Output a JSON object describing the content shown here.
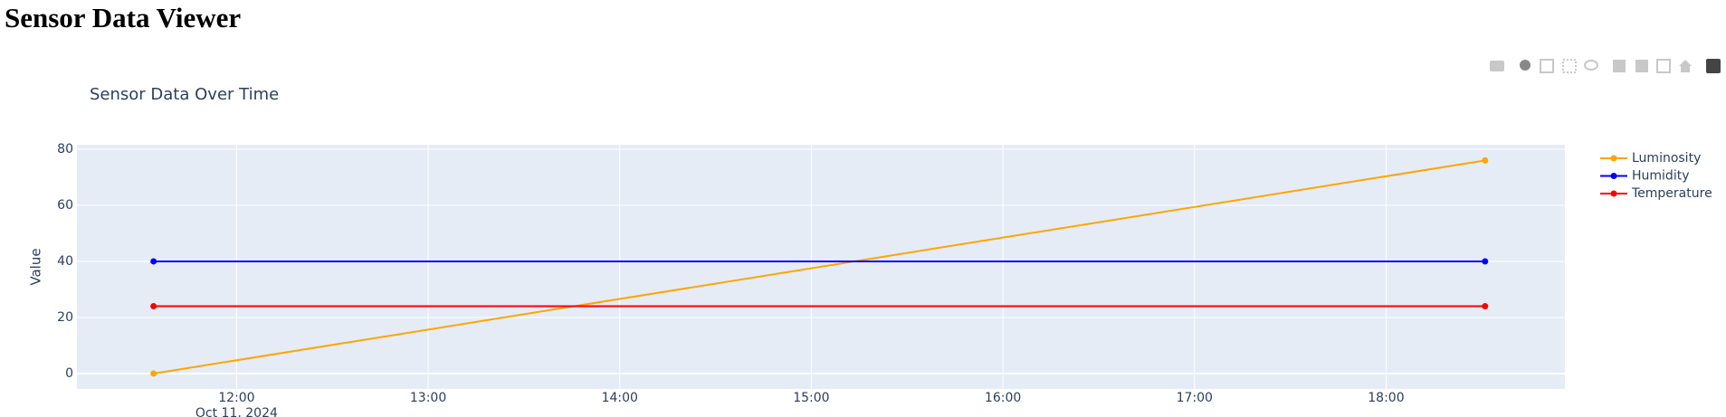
{
  "page_title": "Sensor Data Viewer",
  "chart_data": {
    "type": "line",
    "title": "Sensor Data Over Time",
    "y_label": "Value",
    "x": [
      "2024-10-11 11:34",
      "2024-10-11 18:31"
    ],
    "xlim": [
      "2024-10-11 11:10",
      "2024-10-11 18:56"
    ],
    "xticks": [
      {
        "value": "2024-10-11 12:00",
        "label": "12:00"
      },
      {
        "value": "2024-10-11 13:00",
        "label": "13:00"
      },
      {
        "value": "2024-10-11 14:00",
        "label": "14:00"
      },
      {
        "value": "2024-10-11 15:00",
        "label": "15:00"
      },
      {
        "value": "2024-10-11 16:00",
        "label": "16:00"
      },
      {
        "value": "2024-10-11 17:00",
        "label": "17:00"
      },
      {
        "value": "2024-10-11 18:00",
        "label": "18:00"
      }
    ],
    "x_date_label": "Oct 11, 2024",
    "ylim": [
      -5.5,
      81.6
    ],
    "yticks": [
      0,
      20,
      40,
      60,
      80
    ],
    "grid": true,
    "series": [
      {
        "name": "Luminosity",
        "color": "#ffa500",
        "values": [
          0,
          76
        ]
      },
      {
        "name": "Humidity",
        "color": "#0000ff",
        "values": [
          40,
          40
        ]
      },
      {
        "name": "Temperature",
        "color": "#ff0000",
        "values": [
          24,
          24
        ]
      }
    ]
  }
}
